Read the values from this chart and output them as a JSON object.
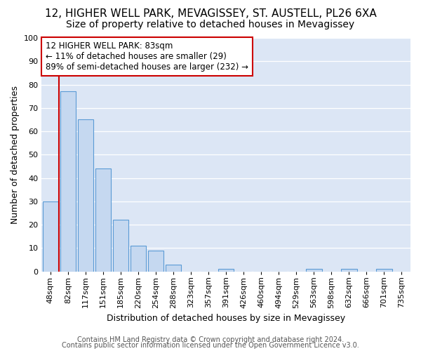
{
  "title": "12, HIGHER WELL PARK, MEVAGISSEY, ST. AUSTELL, PL26 6XA",
  "subtitle": "Size of property relative to detached houses in Mevagissey",
  "xlabel": "Distribution of detached houses by size in Mevagissey",
  "ylabel": "Number of detached properties",
  "footer1": "Contains HM Land Registry data © Crown copyright and database right 2024.",
  "footer2": "Contains public sector information licensed under the Open Government Licence v3.0.",
  "bin_labels": [
    "48sqm",
    "82sqm",
    "117sqm",
    "151sqm",
    "185sqm",
    "220sqm",
    "254sqm",
    "288sqm",
    "323sqm",
    "357sqm",
    "391sqm",
    "426sqm",
    "460sqm",
    "494sqm",
    "529sqm",
    "563sqm",
    "598sqm",
    "632sqm",
    "666sqm",
    "701sqm",
    "735sqm"
  ],
  "bar_heights": [
    30,
    77,
    65,
    44,
    22,
    11,
    9,
    3,
    0,
    0,
    1,
    0,
    0,
    0,
    0,
    1,
    0,
    1,
    0,
    1,
    0
  ],
  "bar_color": "#c5d8f0",
  "bar_edge_color": "#5b9bd5",
  "red_line_bin_index": 1,
  "red_line_color": "#cc0000",
  "annotation_text": "12 HIGHER WELL PARK: 83sqm\n← 11% of detached houses are smaller (29)\n89% of semi-detached houses are larger (232) →",
  "annotation_box_facecolor": "#ffffff",
  "annotation_box_edgecolor": "#cc0000",
  "ylim": [
    0,
    100
  ],
  "yticks": [
    0,
    10,
    20,
    30,
    40,
    50,
    60,
    70,
    80,
    90,
    100
  ],
  "fig_background": "#ffffff",
  "plot_background": "#dce6f5",
  "grid_color": "#ffffff",
  "title_fontsize": 11,
  "subtitle_fontsize": 10,
  "axis_label_fontsize": 9,
  "tick_fontsize": 8,
  "footer_fontsize": 7
}
